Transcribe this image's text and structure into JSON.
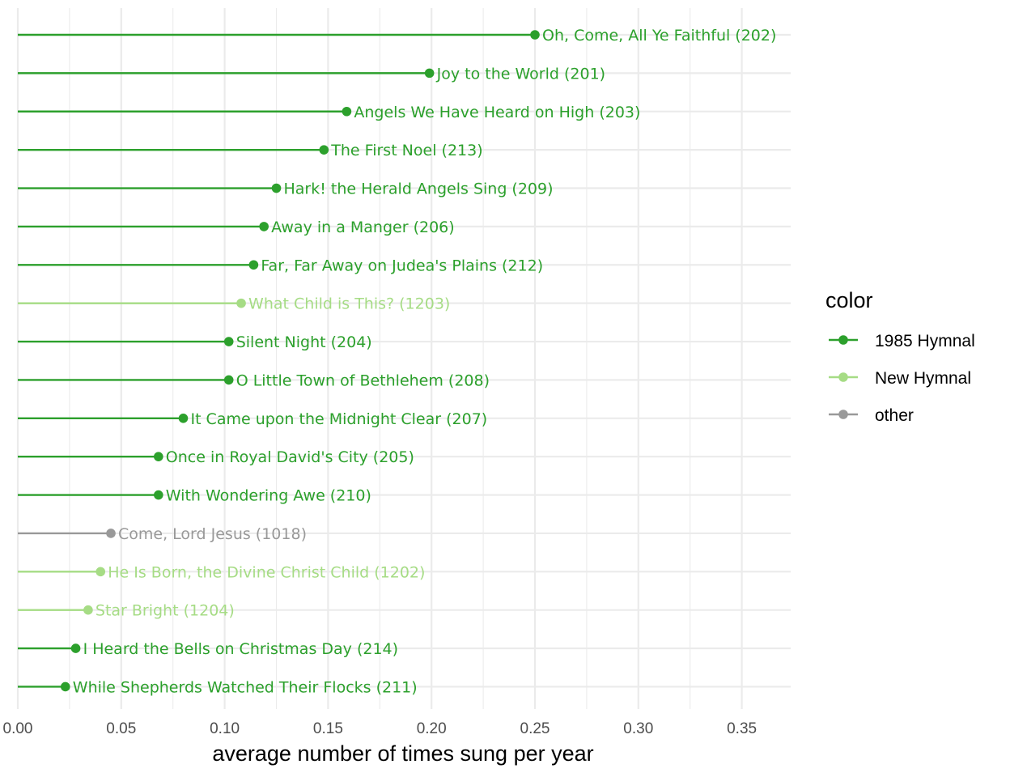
{
  "colors": {
    "1985 Hymnal": "#2ca02c",
    "New Hymnal": "#a6dc85",
    "other": "#999999",
    "grid": "#ebebeb"
  },
  "chart_data": {
    "type": "lollipop",
    "title": "",
    "xlabel": "average number of times sung per year",
    "ylabel": "",
    "xlim": [
      0,
      0.37
    ],
    "xticks": [
      0.0,
      0.05,
      0.1,
      0.15,
      0.2,
      0.25,
      0.3,
      0.35
    ],
    "xtick_labels": [
      "0.00",
      "0.05",
      "0.10",
      "0.15",
      "0.20",
      "0.25",
      "0.30",
      "0.35"
    ],
    "grid": true,
    "legend": {
      "title": "color",
      "position": "right",
      "entries": [
        "1985 Hymnal",
        "New Hymnal",
        "other"
      ]
    },
    "points": [
      {
        "label": "Oh, Come, All Ye Faithful (202)",
        "value": 0.25,
        "group": "1985 Hymnal"
      },
      {
        "label": "Joy to the World (201)",
        "value": 0.199,
        "group": "1985 Hymnal"
      },
      {
        "label": "Angels We Have Heard on High (203)",
        "value": 0.159,
        "group": "1985 Hymnal"
      },
      {
        "label": "The First Noel (213)",
        "value": 0.148,
        "group": "1985 Hymnal"
      },
      {
        "label": "Hark! the Herald Angels Sing (209)",
        "value": 0.125,
        "group": "1985 Hymnal"
      },
      {
        "label": "Away in a Manger (206)",
        "value": 0.119,
        "group": "1985 Hymnal"
      },
      {
        "label": "Far, Far Away on Judea's Plains (212)",
        "value": 0.114,
        "group": "1985 Hymnal"
      },
      {
        "label": "What Child is This? (1203)",
        "value": 0.108,
        "group": "New Hymnal"
      },
      {
        "label": "Silent Night (204)",
        "value": 0.102,
        "group": "1985 Hymnal"
      },
      {
        "label": "O Little Town of Bethlehem (208)",
        "value": 0.102,
        "group": "1985 Hymnal"
      },
      {
        "label": "It Came upon the Midnight Clear (207)",
        "value": 0.08,
        "group": "1985 Hymnal"
      },
      {
        "label": "Once in Royal David's City (205)",
        "value": 0.068,
        "group": "1985 Hymnal"
      },
      {
        "label": "With Wondering Awe (210)",
        "value": 0.068,
        "group": "1985 Hymnal"
      },
      {
        "label": "Come, Lord Jesus (1018)",
        "value": 0.045,
        "group": "other"
      },
      {
        "label": "He Is Born, the Divine Christ Child (1202)",
        "value": 0.04,
        "group": "New Hymnal"
      },
      {
        "label": "Star Bright (1204)",
        "value": 0.034,
        "group": "New Hymnal"
      },
      {
        "label": "I Heard the Bells on Christmas Day (214)",
        "value": 0.028,
        "group": "1985 Hymnal"
      },
      {
        "label": "While Shepherds Watched Their Flocks (211)",
        "value": 0.023,
        "group": "1985 Hymnal"
      }
    ]
  }
}
